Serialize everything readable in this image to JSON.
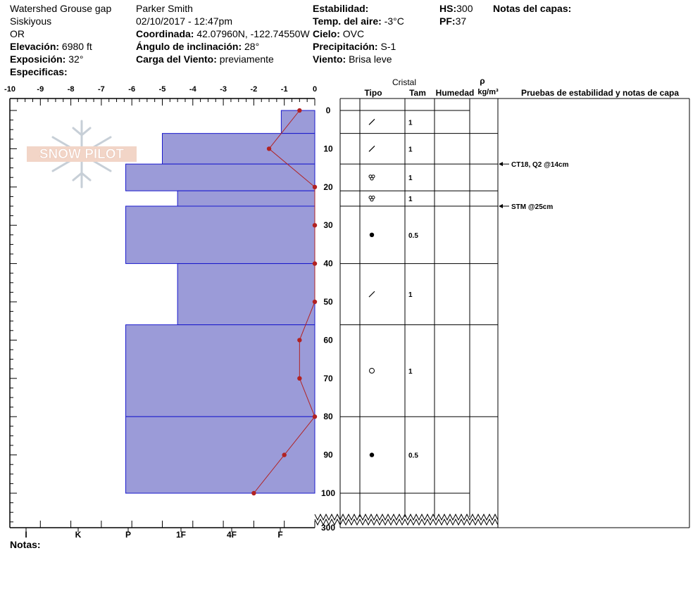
{
  "header": {
    "location": "Watershed Grouse gap",
    "region": "Siskiyous",
    "state": "OR",
    "elevation_label": "Elevación:",
    "elevation": "6980 ft",
    "aspect_label": "Exposición:",
    "aspect": "32°",
    "specifics_label": "Especificas:",
    "observer": "Parker Smith",
    "datetime": "02/10/2017 - 12:47pm",
    "coord_label": "Coordinada:",
    "coord": "42.07960N, -122.74550W",
    "slope_label": "Ángulo de inclinación:",
    "slope": "28°",
    "windload_label": "Carga del Viento:",
    "windload": "previamente",
    "stability_label": "Estabilidad:",
    "airtemp_label": "Temp. del aire:",
    "airtemp": "-3°C",
    "sky_label": "Cielo:",
    "sky": "OVC",
    "precip_label": "Precipitación:",
    "precip": "S-1",
    "wind_label": "Viento:",
    "wind": "Brisa leve",
    "hs_label": "HS:",
    "hs": "300",
    "pf_label": "PF:",
    "pf": "37",
    "layer_notes_label": "Notas del capas:"
  },
  "logo_text": "SNOW PILOT",
  "columns": {
    "crystal": "Cristal",
    "type": "Tipo",
    "size": "Tam",
    "moisture": "Humedad",
    "density_symbol": "ρ",
    "density_unit": "kg/m³",
    "tests": "Pruebas de estabilidad y notas de capa"
  },
  "notes_label": "Notas:",
  "chart_data": {
    "type": "snow-profile",
    "temperature_axis": {
      "ticks": [
        "-10",
        "-9",
        "-8",
        "-7",
        "-6",
        "-5",
        "-4",
        "-3",
        "-2",
        "-1",
        "0"
      ],
      "range": [
        -10,
        0
      ]
    },
    "depth_axis": {
      "ticks": [
        "0",
        "10",
        "20",
        "30",
        "40",
        "50",
        "60",
        "70",
        "80",
        "90",
        "100"
      ],
      "bottom_tick": "300",
      "range": [
        0,
        100
      ]
    },
    "hardness_axis": {
      "ticks": [
        "I",
        "K",
        "P",
        "1F",
        "4F",
        "F"
      ]
    },
    "hardness_bars": [
      {
        "top": 0,
        "bottom": 6,
        "temp_value": -1.1
      },
      {
        "top": 6,
        "bottom": 14,
        "temp_value": -5.0
      },
      {
        "top": 14,
        "bottom": 21,
        "temp_value": -6.2
      },
      {
        "top": 21,
        "bottom": 25,
        "temp_value": -4.5
      },
      {
        "top": 25,
        "bottom": 40,
        "temp_value": -6.2
      },
      {
        "top": 40,
        "bottom": 56,
        "temp_value": -4.5
      },
      {
        "top": 56,
        "bottom": 80,
        "temp_value": -6.2
      },
      {
        "top": 80,
        "bottom": 100,
        "temp_value": -6.2
      }
    ],
    "temperature_profile": {
      "depth": [
        0,
        10,
        20,
        30,
        40,
        50,
        60,
        70,
        80,
        90,
        100
      ],
      "temp": [
        -0.5,
        -1.5,
        0,
        0,
        0,
        0,
        -0.5,
        -0.5,
        0,
        -1.0,
        -2.0
      ],
      "color": "#b22222"
    },
    "layers": [
      {
        "top": 0,
        "bottom": 6,
        "type": "slash",
        "size": "1"
      },
      {
        "top": 6,
        "bottom": 14,
        "type": "slash",
        "size": "1"
      },
      {
        "top": 14,
        "bottom": 21,
        "type": "trefoil",
        "size": "1"
      },
      {
        "top": 21,
        "bottom": 25,
        "type": "trefoil",
        "size": "1"
      },
      {
        "top": 25,
        "bottom": 40,
        "type": "dot",
        "size": "0.5"
      },
      {
        "top": 40,
        "bottom": 56,
        "type": "slash",
        "size": "1"
      },
      {
        "top": 56,
        "bottom": 80,
        "type": "circle",
        "size": "1"
      },
      {
        "top": 80,
        "bottom": 100,
        "type": "dot",
        "size": "0.5"
      }
    ],
    "stability_notes": [
      {
        "depth": 14,
        "text": "CT18, Q2 @14cm"
      },
      {
        "depth": 25,
        "text": "STM @25cm"
      }
    ],
    "bar_fill": "#9b9bd8",
    "bar_stroke": "#1a1acc"
  }
}
